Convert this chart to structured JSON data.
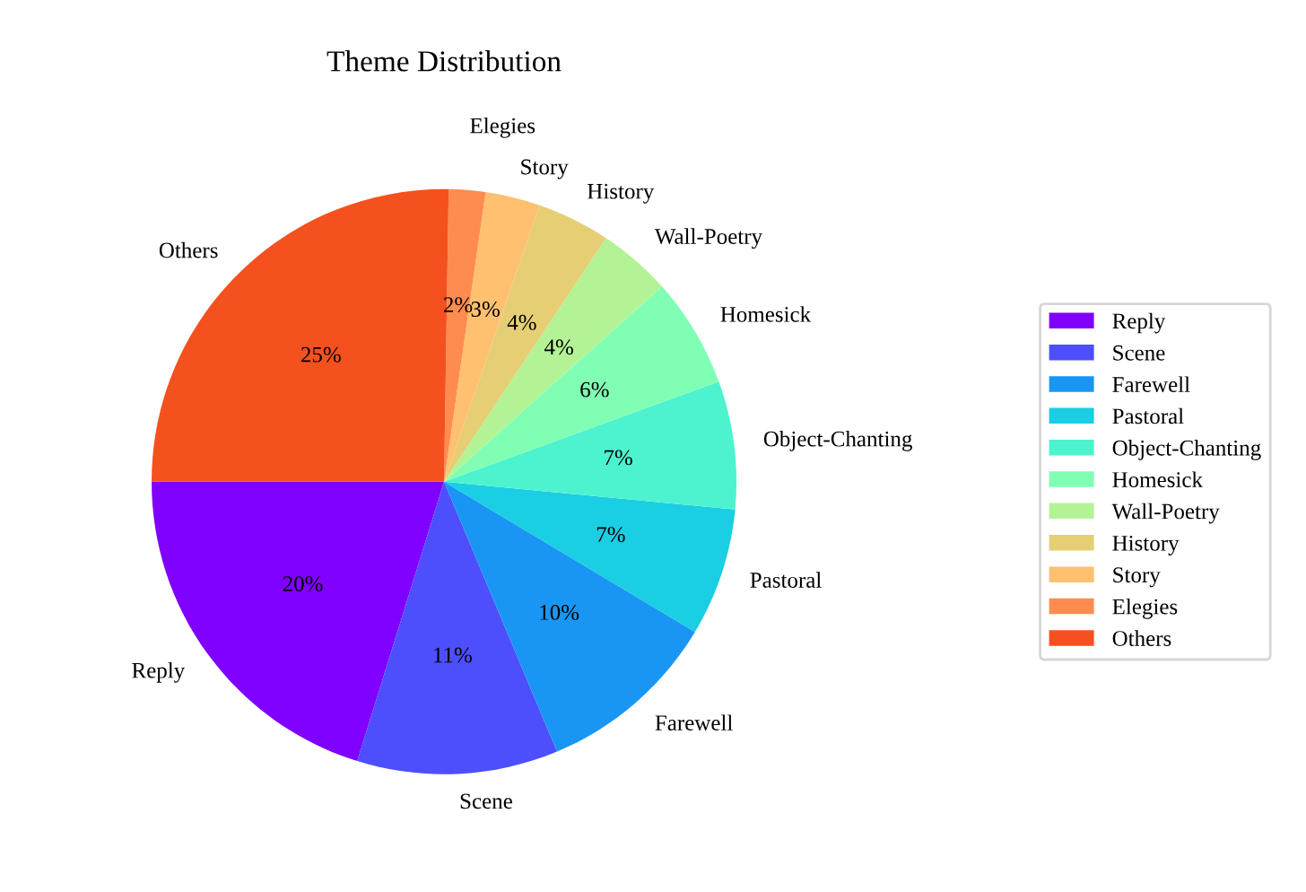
{
  "chart_data": {
    "type": "pie",
    "title": "Theme Distribution",
    "categories": [
      "Reply",
      "Scene",
      "Farewell",
      "Pastoral",
      "Object-Chanting",
      "Homesick",
      "Wall-Poetry",
      "History",
      "Story",
      "Elegies",
      "Others"
    ],
    "values": [
      20,
      11,
      10,
      7,
      7,
      6,
      4,
      4,
      3,
      2,
      25
    ],
    "colors": [
      "#8000ff",
      "#4d4ffc",
      "#1996f3",
      "#1acee3",
      "#4df3ce",
      "#80ffb4",
      "#b3f396",
      "#e6ce74",
      "#ffc070",
      "#ff8c4f",
      "#f4511e"
    ],
    "value_labels": [
      "20%",
      "11%",
      "10%",
      "7%",
      "7%",
      "6%",
      "4%",
      "4%",
      "3%",
      "2%",
      "25%"
    ],
    "legend": "right"
  }
}
